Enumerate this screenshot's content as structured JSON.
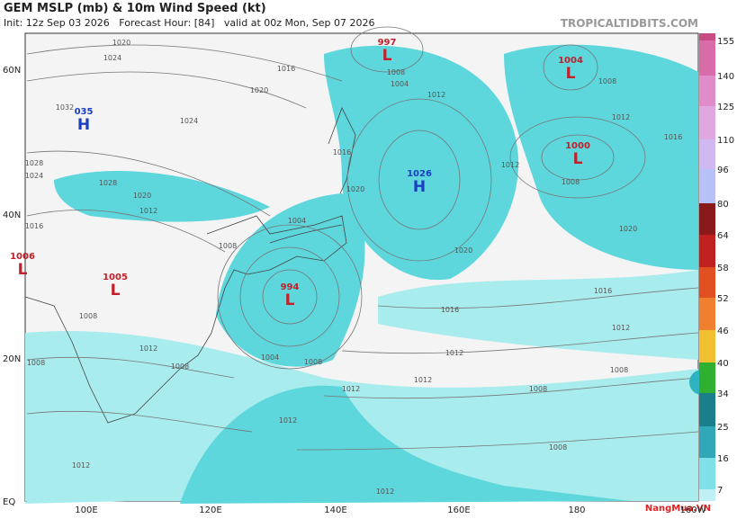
{
  "header": {
    "title": "GEM MSLP (mb) & 10m Wind Speed (kt)",
    "subtitle": "Init: 12z Sep 03 2026   Forecast Hour: [84]   valid at 00z Mon, Sep 07 2026",
    "source": "TROPICALTIDBITS.COM"
  },
  "lat_labels": [
    "60N",
    "40N",
    "20N",
    "EQ"
  ],
  "lon_labels": [
    "100E",
    "120E",
    "140E",
    "160E",
    "180",
    "160W"
  ],
  "colorbar": [
    "155",
    "140",
    "125",
    "110",
    "96",
    "80",
    "64",
    "58",
    "52",
    "46",
    "40",
    "34",
    "25",
    "16",
    "7"
  ],
  "centers": [
    {
      "value": "035",
      "letter": "H"
    },
    {
      "value": "1026",
      "letter": "H"
    },
    {
      "value": "997",
      "letter": "L"
    },
    {
      "value": "1004",
      "letter": "L"
    },
    {
      "value": "1000",
      "letter": "L"
    },
    {
      "value": "1006",
      "letter": "L"
    },
    {
      "value": "1005",
      "letter": "L"
    },
    {
      "value": "994",
      "letter": "L"
    }
  ],
  "isobar_labels": [
    "1020",
    "1024",
    "1016",
    "1020",
    "1024",
    "1032",
    "1028",
    "1028",
    "1024",
    "1020",
    "1016",
    "1012",
    "1008",
    "1004",
    "1008",
    "1004",
    "1012",
    "1016",
    "1012",
    "1008",
    "1012",
    "1008",
    "1020",
    "1016",
    "1016",
    "1020",
    "1012",
    "1012",
    "1012",
    "1008",
    "1008",
    "1008",
    "1008",
    "1008",
    "1012",
    "1012",
    "1012",
    "1004",
    "1008",
    "1012",
    "1008",
    "1012",
    "1016",
    "1020"
  ],
  "watermark": "NangMua.VN"
}
